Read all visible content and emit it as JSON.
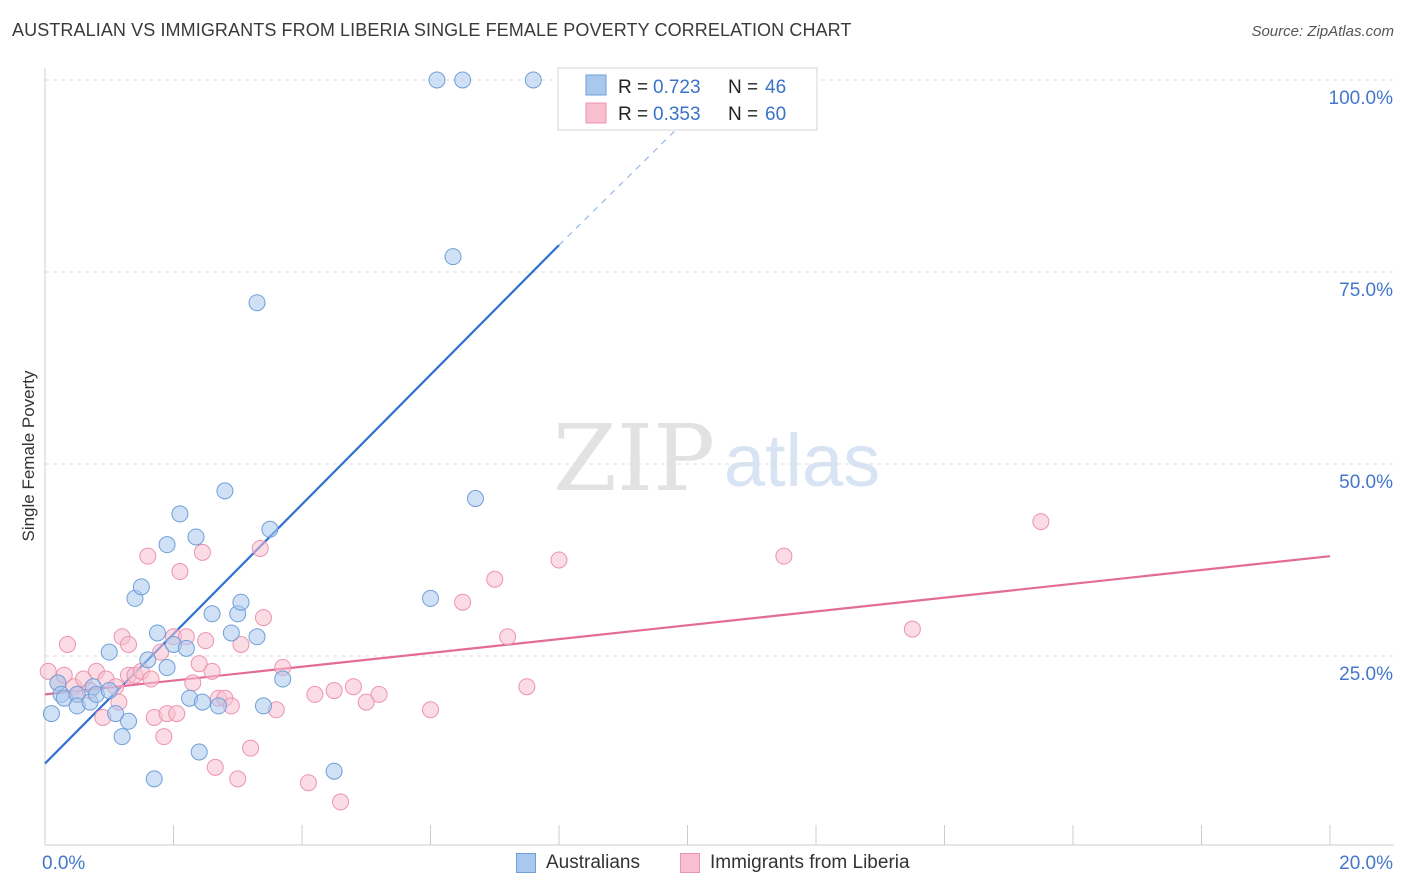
{
  "header": {
    "title": "AUSTRALIAN VS IMMIGRANTS FROM LIBERIA SINGLE FEMALE POVERTY CORRELATION CHART",
    "source": "Source: ZipAtlas.com"
  },
  "watermark": {
    "zip": "ZIP",
    "atlas": "atlas"
  },
  "colors": {
    "blue_fill": "#a9c8ee",
    "blue_stroke": "#6f9fd8",
    "blue_line": "#2f6fd0",
    "pink_fill": "#f8bfd0",
    "pink_stroke": "#ec93b0",
    "pink_line": "#e36b97",
    "axis_label": "#4477cc"
  },
  "legend": {
    "series": [
      {
        "r_label": "R = ",
        "r_value": "0.723",
        "n_label": "N = ",
        "n_value": "46"
      },
      {
        "r_label": "R = ",
        "r_value": "0.353",
        "n_label": "N = ",
        "n_value": "60"
      }
    ]
  },
  "bottom_legend": [
    "Australians",
    "Immigrants from Liberia"
  ],
  "chart_data": {
    "type": "scatter",
    "title": "AUSTRALIAN VS IMMIGRANTS FROM LIBERIA SINGLE FEMALE POVERTY CORRELATION CHART",
    "xlabel": "",
    "ylabel": "Single Female Poverty",
    "xlim": [
      0,
      20
    ],
    "ylim": [
      0,
      102
    ],
    "x_ticks": [
      "0.0%",
      "20.0%"
    ],
    "y_ticks": [
      {
        "value": 25,
        "label": "25.0%"
      },
      {
        "value": 50,
        "label": "50.0%"
      },
      {
        "value": 75,
        "label": "75.0%"
      },
      {
        "value": 100,
        "label": "100.0%"
      }
    ],
    "series": [
      {
        "name": "Australians",
        "r": 0.723,
        "n": 46,
        "trend": {
          "x0": 0.0,
          "y0": 11.0,
          "x1": 8.0,
          "y1": 78.5,
          "dash_x1": 10.0,
          "dash_y1": 95.0
        },
        "points": [
          [
            0.1,
            17.5
          ],
          [
            0.2,
            21.5
          ],
          [
            0.25,
            20.0
          ],
          [
            0.3,
            19.5
          ],
          [
            0.5,
            20.0
          ],
          [
            0.5,
            18.5
          ],
          [
            0.7,
            19.0
          ],
          [
            0.75,
            21.0
          ],
          [
            0.8,
            20.0
          ],
          [
            1.0,
            20.5
          ],
          [
            1.0,
            25.5
          ],
          [
            1.1,
            17.5
          ],
          [
            1.2,
            14.5
          ],
          [
            1.3,
            16.5
          ],
          [
            1.4,
            32.5
          ],
          [
            1.5,
            34.0
          ],
          [
            1.6,
            24.5
          ],
          [
            1.7,
            9.0
          ],
          [
            1.75,
            28.0
          ],
          [
            1.9,
            23.5
          ],
          [
            1.9,
            39.5
          ],
          [
            2.0,
            26.5
          ],
          [
            2.1,
            43.5
          ],
          [
            2.2,
            26.0
          ],
          [
            2.25,
            19.5
          ],
          [
            2.35,
            40.5
          ],
          [
            2.4,
            12.5
          ],
          [
            2.45,
            19.0
          ],
          [
            2.6,
            30.5
          ],
          [
            2.7,
            18.5
          ],
          [
            2.8,
            46.5
          ],
          [
            2.9,
            28.0
          ],
          [
            3.0,
            30.5
          ],
          [
            3.05,
            32.0
          ],
          [
            3.3,
            27.5
          ],
          [
            3.3,
            71.0
          ],
          [
            3.4,
            18.5
          ],
          [
            3.5,
            41.5
          ],
          [
            3.7,
            22.0
          ],
          [
            4.5,
            10.0
          ],
          [
            6.0,
            32.5
          ],
          [
            6.1,
            100.0
          ],
          [
            6.35,
            77.0
          ],
          [
            6.5,
            100.0
          ],
          [
            6.7,
            45.5
          ],
          [
            7.6,
            100.0
          ]
        ]
      },
      {
        "name": "Immigrants from Liberia",
        "r": 0.353,
        "n": 60,
        "trend": {
          "x0": 0.0,
          "y0": 20.0,
          "x1": 20.0,
          "y1": 38.0
        },
        "points": [
          [
            0.05,
            23.0
          ],
          [
            0.2,
            21.5
          ],
          [
            0.3,
            22.5
          ],
          [
            0.35,
            26.5
          ],
          [
            0.45,
            21.0
          ],
          [
            0.5,
            20.0
          ],
          [
            0.6,
            22.0
          ],
          [
            0.7,
            20.5
          ],
          [
            0.8,
            23.0
          ],
          [
            0.9,
            17.0
          ],
          [
            0.95,
            22.0
          ],
          [
            1.1,
            21.0
          ],
          [
            1.15,
            19.0
          ],
          [
            1.2,
            27.5
          ],
          [
            1.3,
            26.5
          ],
          [
            1.3,
            22.5
          ],
          [
            1.4,
            22.5
          ],
          [
            1.5,
            23.0
          ],
          [
            1.6,
            38.0
          ],
          [
            1.65,
            22.0
          ],
          [
            1.7,
            17.0
          ],
          [
            1.8,
            25.5
          ],
          [
            1.85,
            14.5
          ],
          [
            1.9,
            17.5
          ],
          [
            2.0,
            27.5
          ],
          [
            2.05,
            17.5
          ],
          [
            2.1,
            36.0
          ],
          [
            2.2,
            27.5
          ],
          [
            2.3,
            21.5
          ],
          [
            2.4,
            24.0
          ],
          [
            2.45,
            38.5
          ],
          [
            2.5,
            27.0
          ],
          [
            2.6,
            23.0
          ],
          [
            2.65,
            10.5
          ],
          [
            2.7,
            19.5
          ],
          [
            2.8,
            19.5
          ],
          [
            2.9,
            18.5
          ],
          [
            3.0,
            9.0
          ],
          [
            3.05,
            26.5
          ],
          [
            3.2,
            13.0
          ],
          [
            3.35,
            39.0
          ],
          [
            3.4,
            30.0
          ],
          [
            3.6,
            18.0
          ],
          [
            3.7,
            23.5
          ],
          [
            4.1,
            8.5
          ],
          [
            4.2,
            20.0
          ],
          [
            4.5,
            20.5
          ],
          [
            4.6,
            6.0
          ],
          [
            4.8,
            21.0
          ],
          [
            5.0,
            19.0
          ],
          [
            5.2,
            20.0
          ],
          [
            6.0,
            18.0
          ],
          [
            6.5,
            32.0
          ],
          [
            7.0,
            35.0
          ],
          [
            7.2,
            27.5
          ],
          [
            7.5,
            21.0
          ],
          [
            8.0,
            37.5
          ],
          [
            11.5,
            38.0
          ],
          [
            13.5,
            28.5
          ],
          [
            15.5,
            42.5
          ]
        ]
      }
    ]
  }
}
